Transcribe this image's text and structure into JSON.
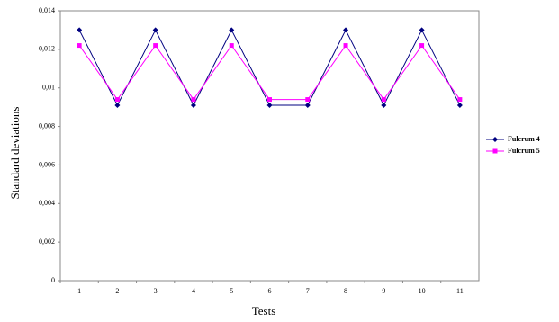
{
  "chart_data": {
    "type": "line",
    "x_label": "Tests",
    "y_label": "Standard deviations",
    "categories": [
      "1",
      "2",
      "3",
      "4",
      "5",
      "6",
      "7",
      "8",
      "9",
      "10",
      "11"
    ],
    "series": [
      {
        "name": "Fulcrum 4",
        "color": "#000080",
        "marker": "diamond",
        "values": [
          0.013,
          0.0091,
          0.013,
          0.0091,
          0.013,
          0.0091,
          0.0091,
          0.013,
          0.0091,
          0.013,
          0.0091
        ]
      },
      {
        "name": "Fulcrum 5",
        "color": "#ff00ff",
        "marker": "square",
        "values": [
          0.0122,
          0.0094,
          0.0122,
          0.0094,
          0.0122,
          0.0094,
          0.0094,
          0.0122,
          0.0094,
          0.0122,
          0.0094
        ]
      }
    ],
    "ylim": [
      0,
      0.014
    ],
    "yticks": [
      0,
      {
        "value": 0.002,
        "label": "0,002"
      },
      {
        "value": 0.004,
        "label": "0,004"
      },
      {
        "value": 0.006,
        "label": "0,006"
      },
      {
        "value": 0.008,
        "label": "0,008"
      },
      {
        "value": 0.01,
        "label": "0,01"
      },
      {
        "value": 0.012,
        "label": "0,012"
      },
      {
        "value": 0.014,
        "label": "0,014"
      }
    ],
    "grid": false,
    "legend": "right"
  }
}
